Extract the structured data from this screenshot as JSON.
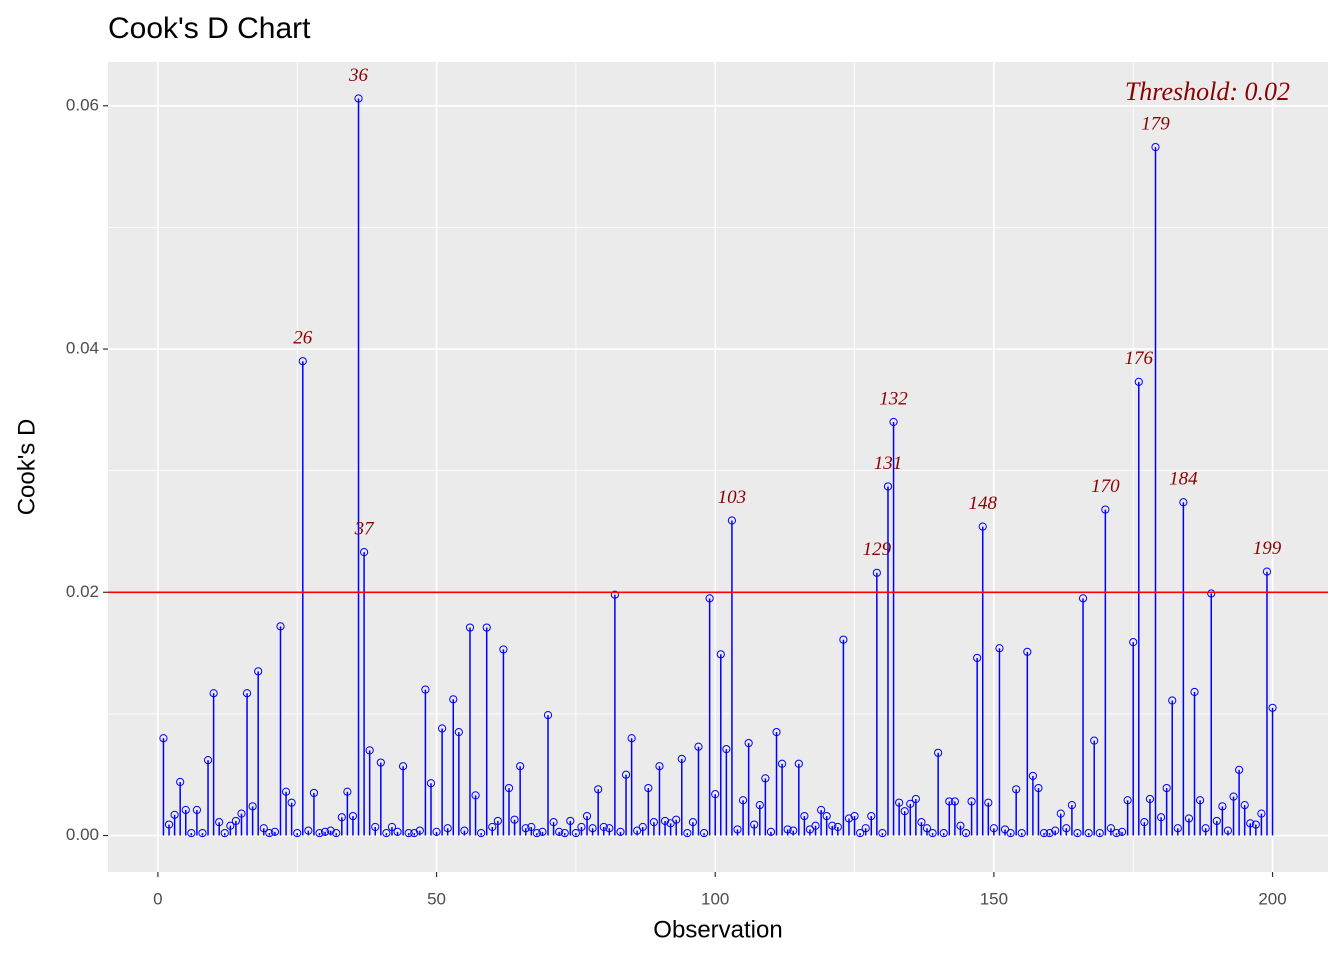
{
  "chart_data": {
    "type": "lollipop",
    "title": "Cook's D Chart",
    "x_label": "Observation",
    "y_label": "Cook's D",
    "annotation": "Threshold: 0.02",
    "threshold": 0.02,
    "threshold_color": "#ff0000",
    "color": "#0000ff",
    "label_color": "#8b0000",
    "grid": true,
    "minor_grid": true,
    "xlim": [
      -8.95,
      209.95
    ],
    "ylim": [
      -0.003,
      0.0636
    ],
    "xticks": [
      0,
      50,
      100,
      150,
      200
    ],
    "yticks": [
      {
        "value": 0,
        "label": "0.00"
      },
      0.02,
      0.04,
      0.06
    ],
    "x": [
      1,
      2,
      3,
      4,
      5,
      6,
      7,
      8,
      9,
      10,
      11,
      12,
      13,
      14,
      15,
      16,
      17,
      18,
      19,
      20,
      21,
      22,
      23,
      24,
      25,
      26,
      27,
      28,
      29,
      30,
      31,
      32,
      33,
      34,
      35,
      36,
      37,
      38,
      39,
      40,
      41,
      42,
      43,
      44,
      45,
      46,
      47,
      48,
      49,
      50,
      51,
      52,
      53,
      54,
      55,
      56,
      57,
      58,
      59,
      60,
      61,
      62,
      63,
      64,
      65,
      66,
      67,
      68,
      69,
      70,
      71,
      72,
      73,
      74,
      75,
      76,
      77,
      78,
      79,
      80,
      81,
      82,
      83,
      84,
      85,
      86,
      87,
      88,
      89,
      90,
      91,
      92,
      93,
      94,
      95,
      96,
      97,
      98,
      99,
      100,
      101,
      102,
      103,
      104,
      105,
      106,
      107,
      108,
      109,
      110,
      111,
      112,
      113,
      114,
      115,
      116,
      117,
      118,
      119,
      120,
      121,
      122,
      123,
      124,
      125,
      126,
      127,
      128,
      129,
      130,
      131,
      132,
      133,
      134,
      135,
      136,
      137,
      138,
      139,
      140,
      141,
      142,
      143,
      144,
      145,
      146,
      147,
      148,
      149,
      150,
      151,
      152,
      153,
      154,
      155,
      156,
      157,
      158,
      159,
      160,
      161,
      162,
      163,
      164,
      165,
      166,
      167,
      168,
      169,
      170,
      171,
      172,
      173,
      174,
      175,
      176,
      177,
      178,
      179,
      180,
      181,
      182,
      183,
      184,
      185,
      186,
      187,
      188,
      189,
      190,
      191,
      192,
      193,
      194,
      195,
      196,
      197,
      198,
      199,
      200
    ],
    "values": [
      0.008,
      0.0009,
      0.0017,
      0.0044,
      0.0021,
      0.0002,
      0.0021,
      0.0002,
      0.0062,
      0.0117,
      0.0011,
      0.0002,
      0.0008,
      0.0012,
      0.0018,
      0.0117,
      0.0024,
      0.0135,
      0.0006,
      0.0002,
      0.0003,
      0.0172,
      0.0036,
      0.0027,
      0.0002,
      0.039,
      0.0004,
      0.0035,
      0.0002,
      0.0003,
      0.0004,
      0.0002,
      0.0015,
      0.0036,
      0.0016,
      0.0606,
      0.0233,
      0.007,
      0.0007,
      0.006,
      0.0002,
      0.0007,
      0.0003,
      0.0057,
      0.0002,
      0.0002,
      0.0004,
      0.012,
      0.0043,
      0.0003,
      0.0088,
      0.0006,
      0.0112,
      0.0085,
      0.0004,
      0.0171,
      0.0033,
      0.0002,
      0.0171,
      0.0007,
      0.0012,
      0.0153,
      0.0039,
      0.0013,
      0.0057,
      0.0006,
      0.0007,
      0.0002,
      0.0003,
      0.0099,
      0.0011,
      0.0003,
      0.0002,
      0.0012,
      0.0002,
      0.0007,
      0.0016,
      0.0006,
      0.0038,
      0.0007,
      0.0006,
      0.0198,
      0.0003,
      0.005,
      0.008,
      0.0004,
      0.0007,
      0.0039,
      0.0011,
      0.0057,
      0.0012,
      0.001,
      0.0013,
      0.0063,
      0.0002,
      0.0011,
      0.0073,
      0.0002,
      0.0195,
      0.0034,
      0.0149,
      0.0071,
      0.0259,
      0.0005,
      0.0029,
      0.0076,
      0.0009,
      0.0025,
      0.0047,
      0.0003,
      0.0085,
      0.0059,
      0.0005,
      0.0004,
      0.0059,
      0.0016,
      0.0005,
      0.0008,
      0.0021,
      0.0016,
      0.0008,
      0.0007,
      0.0161,
      0.0014,
      0.0016,
      0.0002,
      0.0006,
      0.0016,
      0.0216,
      0.0002,
      0.0287,
      0.034,
      0.0027,
      0.002,
      0.0026,
      0.003,
      0.0011,
      0.0006,
      0.0002,
      0.0068,
      0.0002,
      0.0028,
      0.0028,
      0.0008,
      0.0002,
      0.0028,
      0.0146,
      0.0254,
      0.0027,
      0.0006,
      0.0154,
      0.0005,
      0.0002,
      0.0038,
      0.0002,
      0.0151,
      0.0049,
      0.0039,
      0.0002,
      0.0002,
      0.0004,
      0.0018,
      0.0006,
      0.0025,
      0.0002,
      0.0195,
      0.0002,
      0.0078,
      0.0002,
      0.0268,
      0.0006,
      0.0002,
      0.0003,
      0.0029,
      0.0159,
      0.0373,
      0.0011,
      0.003,
      0.0566,
      0.0015,
      0.0039,
      0.0111,
      0.0006,
      0.0274,
      0.0014,
      0.0118,
      0.0029,
      0.0006,
      0.0199,
      0.0012,
      0.0024,
      0.0004,
      0.0032,
      0.0054,
      0.0025,
      0.001,
      0.0009,
      0.0018,
      0.0217,
      0.0105
    ]
  }
}
